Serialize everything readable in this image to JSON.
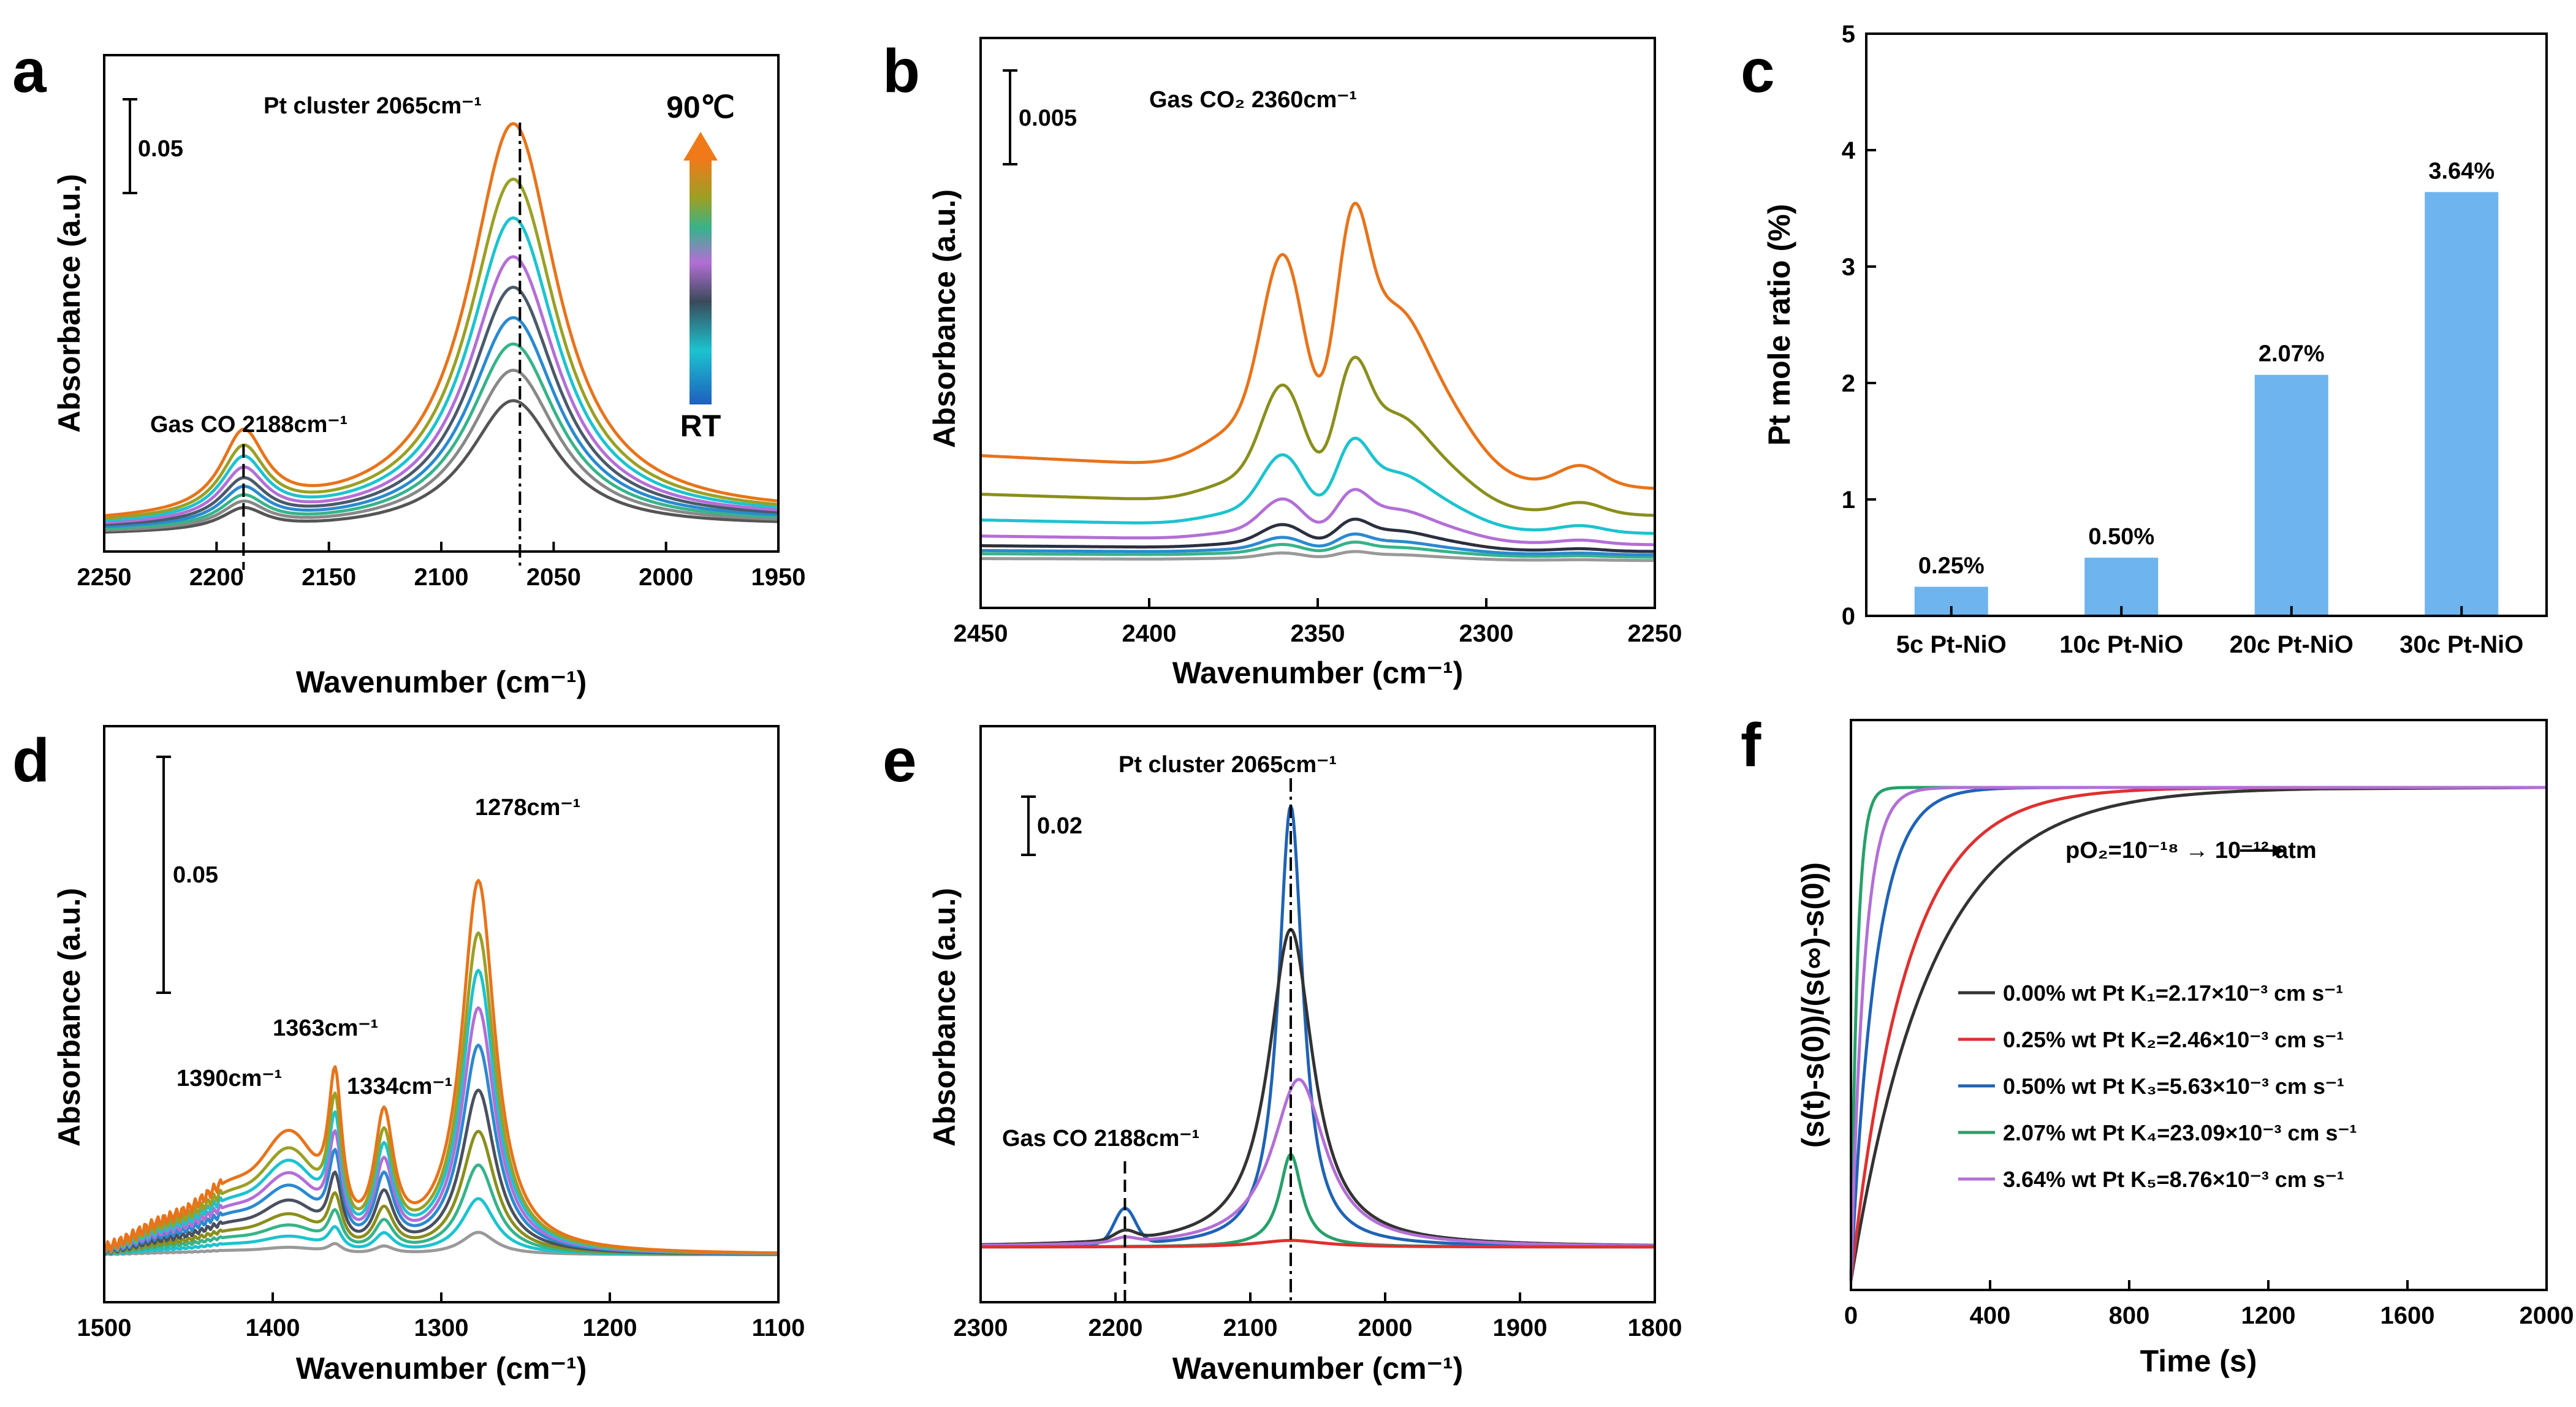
{
  "chart_data": [
    {
      "panel": "a",
      "type": "line",
      "xlabel": "Wavenumber (cm⁻¹)",
      "ylabel": "Absorbance (a.u.)",
      "xlim": [
        2250,
        1950
      ],
      "xticks": [
        2250,
        2200,
        2150,
        2100,
        2050,
        2000,
        1950
      ],
      "scalebar_label": "0.05",
      "annotations": [
        "Pt cluster 2065cm⁻¹",
        "Gas CO 2188cm⁻¹"
      ],
      "colorbar_top": "90℃",
      "colorbar_bottom": "RT",
      "marker_positions": [
        2188,
        2065
      ],
      "series_colors": [
        "#e8731a",
        "#9aa025",
        "#1cc3cf",
        "#b36fd6",
        "#4a5a6a",
        "#2a8ad0",
        "#37b38a",
        "#888888",
        "#555555"
      ],
      "peak_heights": [
        0.95,
        0.82,
        0.73,
        0.64,
        0.57,
        0.5,
        0.44,
        0.38,
        0.31
      ],
      "co_peak_heights": [
        0.19,
        0.16,
        0.14,
        0.12,
        0.1,
        0.085,
        0.07,
        0.06,
        0.05
      ]
    },
    {
      "panel": "b",
      "type": "line",
      "xlabel": "Wavenumber (cm⁻¹)",
      "ylabel": "Absorbance (a.u.)",
      "xlim": [
        2450,
        2250
      ],
      "xticks": [
        2450,
        2400,
        2350,
        2300,
        2250
      ],
      "scalebar_label": "0.005",
      "annotation": "Gas CO₂ 2360cm⁻¹",
      "series_colors": [
        "#e8731a",
        "#8a8f1c",
        "#1cc3cf",
        "#b36fd6",
        "#2b3040",
        "#2a8ad0",
        "#37b38a",
        "#999999"
      ],
      "amplitudes": [
        1.0,
        0.55,
        0.33,
        0.19,
        0.11,
        0.07,
        0.05,
        0.03
      ],
      "baselines": [
        0.34,
        0.22,
        0.14,
        0.09,
        0.06,
        0.045,
        0.035,
        0.02
      ]
    },
    {
      "panel": "c",
      "type": "bar",
      "categories": [
        "5c Pt-NiO",
        "10c Pt-NiO",
        "20c Pt-NiO",
        "30c Pt-NiO"
      ],
      "values": [
        0.25,
        0.5,
        2.07,
        3.64
      ],
      "value_labels": [
        "0.25%",
        "0.50%",
        "2.07%",
        "3.64%"
      ],
      "ylabel": "Pt mole ratio (%)",
      "ylim": [
        0,
        5
      ],
      "yticks": [
        0,
        1,
        2,
        3,
        4,
        5
      ],
      "bar_color": "#6eb4ef"
    },
    {
      "panel": "d",
      "type": "line",
      "xlabel": "Wavenumber (cm⁻¹)",
      "ylabel": "Absorbance (a.u.)",
      "xlim": [
        1500,
        1100
      ],
      "xticks": [
        1500,
        1400,
        1300,
        1200,
        1100
      ],
      "scalebar_label": "0.05",
      "annotations": [
        "1278cm⁻¹",
        "1363cm⁻¹",
        "1334cm⁻¹",
        "1390cm⁻¹"
      ],
      "series_colors": [
        "#e8731a",
        "#9aa025",
        "#1cc3cf",
        "#b36fd6",
        "#2a8ad0",
        "#4a5060",
        "#8a8f1c",
        "#37b38a",
        "#1cc3cf",
        "#999999"
      ],
      "amplitudes": [
        1.0,
        0.86,
        0.76,
        0.66,
        0.56,
        0.44,
        0.33,
        0.24,
        0.15,
        0.06
      ]
    },
    {
      "panel": "e",
      "type": "line",
      "xlabel": "Wavenumber (cm⁻¹)",
      "ylabel": "Absorbance (a.u.)",
      "xlim": [
        2300,
        1800
      ],
      "xticks": [
        2300,
        2200,
        2100,
        2000,
        1900,
        1800
      ],
      "scalebar_label": "0.02",
      "annotations": [
        "Pt cluster 2065cm⁻¹",
        "Gas CO 2188cm⁻¹"
      ],
      "marker_positions": [
        2193,
        2070
      ],
      "series": [
        {
          "color": "#1f63b5",
          "peak": 1.0,
          "co": 0.08
        },
        {
          "color": "#333333",
          "peak": 0.72,
          "co": 0.02
        },
        {
          "color": "#b36fd6",
          "peak": 0.38,
          "co": 0.01
        },
        {
          "color": "#27a06a",
          "peak": 0.21,
          "co": 0.0
        },
        {
          "color": "#e03030",
          "peak": 0.015,
          "co": 0.0
        }
      ]
    },
    {
      "panel": "f",
      "type": "line",
      "xlabel": "Time (s)",
      "ylabel": "(s(t)-s(0))/(s(∞)-s(0))",
      "xlim": [
        0,
        2000
      ],
      "xticks": [
        0,
        400,
        800,
        1200,
        1600,
        2000
      ],
      "annotation": "pO₂=10⁻¹⁸ → 10⁻¹² atm",
      "series": [
        {
          "name": "0.00% wt Pt K₁=2.17×10⁻³ cm s⁻¹",
          "color": "#333333",
          "tau": 230
        },
        {
          "name": "0.25% wt Pt K₂=2.46×10⁻³ cm s⁻¹",
          "color": "#e03030",
          "tau": 160
        },
        {
          "name": "0.50% wt Pt K₃=5.63×10⁻³ cm s⁻¹",
          "color": "#1f63b5",
          "tau": 70
        },
        {
          "name": "2.07% wt Pt K₄=23.09×10⁻³ cm s⁻¹",
          "color": "#27a06a",
          "tau": 18
        },
        {
          "name": "3.64% wt Pt K₅=8.76×10⁻³ cm s⁻¹",
          "color": "#b36fd6",
          "tau": 38
        }
      ]
    }
  ],
  "panel_labels": [
    "a",
    "b",
    "c",
    "d",
    "e",
    "f"
  ]
}
